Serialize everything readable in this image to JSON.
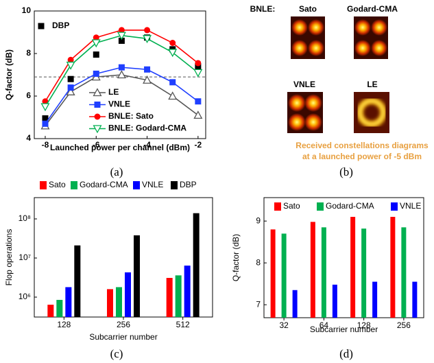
{
  "chart_data": [
    {
      "type": "line",
      "x_label": "Launched power per channel (dBm)",
      "y_label": "Q-factor (dB)",
      "x": [
        -8,
        -7,
        -6,
        -5,
        -4,
        -3,
        -2
      ],
      "xlim": [
        -8.43,
        -1.7
      ],
      "ylim": [
        4,
        10
      ],
      "xticks": [
        -8,
        -6,
        -4,
        -2
      ],
      "yticks": [
        4,
        6,
        8,
        10
      ],
      "reference_y": 6.9,
      "series": [
        {
          "name": "DBP",
          "color": "#000000",
          "marker": "square",
          "line": false,
          "values": [
            4.95,
            6.8,
            7.95,
            8.6,
            8.75,
            8.2,
            7.4
          ]
        },
        {
          "name": "LE",
          "color": "#555555",
          "marker": "triangle-open",
          "line": true,
          "values": [
            4.6,
            6.2,
            6.9,
            7.0,
            6.75,
            6.0,
            5.1
          ]
        },
        {
          "name": "VNLE",
          "color": "#1f3fff",
          "marker": "square",
          "line": true,
          "values": [
            4.7,
            6.4,
            7.05,
            7.35,
            7.25,
            6.65,
            5.75
          ]
        },
        {
          "name": "BNLE: Sato",
          "color": "#ff0000",
          "marker": "circle",
          "line": true,
          "values": [
            5.75,
            7.7,
            8.75,
            9.1,
            9.1,
            8.5,
            7.55
          ]
        },
        {
          "name": "BNLE: Godard-CMA",
          "color": "#00b050",
          "marker": "triangle-down-open",
          "line": true,
          "values": [
            5.5,
            7.45,
            8.5,
            8.85,
            8.7,
            8.05,
            7.1
          ]
        }
      ]
    },
    {
      "type": "bar",
      "log_y": true,
      "x_label": "Subcarrier number",
      "y_label": "Flop operations",
      "categories": [
        "128",
        "256",
        "512"
      ],
      "ylim": [
        310000,
        350000000
      ],
      "yticks": [
        {
          "value": 1000000,
          "label": "10⁶"
        },
        {
          "value": 10000000,
          "label": "10⁷"
        },
        {
          "value": 100000000,
          "label": "10⁸"
        }
      ],
      "series": [
        {
          "name": "Sato",
          "color": "#ff0000",
          "values": [
            640000,
            1600000,
            3100000
          ]
        },
        {
          "name": "Godard-CMA",
          "color": "#00b050",
          "values": [
            850000,
            1800000,
            3600000
          ]
        },
        {
          "name": "VNLE",
          "color": "#0000ff",
          "values": [
            1800000,
            4300000,
            6400000
          ]
        },
        {
          "name": "DBP",
          "color": "#000000",
          "values": [
            21000000,
            38000000,
            140000000
          ]
        }
      ]
    },
    {
      "type": "bar",
      "log_y": false,
      "x_label": "Subcarrier number",
      "y_label": "Q-factor (dB)",
      "categories": [
        "32",
        "64",
        "128",
        "256"
      ],
      "ylim": [
        6.69,
        9.56
      ],
      "yticks": [
        7,
        8,
        9
      ],
      "series": [
        {
          "name": "Sato",
          "color": "#ff0000",
          "values": [
            8.8,
            8.98,
            9.1,
            9.1
          ]
        },
        {
          "name": "Godard-CMA",
          "color": "#00b050",
          "values": [
            8.7,
            8.85,
            8.82,
            8.85
          ]
        },
        {
          "name": "VNLE",
          "color": "#0000ff",
          "values": [
            7.35,
            7.48,
            7.55,
            7.55
          ]
        }
      ]
    }
  ],
  "panel_b": {
    "label": "BNLE:",
    "images": [
      {
        "label": "Sato"
      },
      {
        "label": "Godard-CMA"
      },
      {
        "label": "VNLE"
      },
      {
        "label": "LE"
      }
    ],
    "note": [
      "Received constellations diagrams",
      "at a launched power of -5 dBm"
    ]
  },
  "captions": [
    "(a)",
    "(b)",
    "(c)",
    "(d)"
  ]
}
